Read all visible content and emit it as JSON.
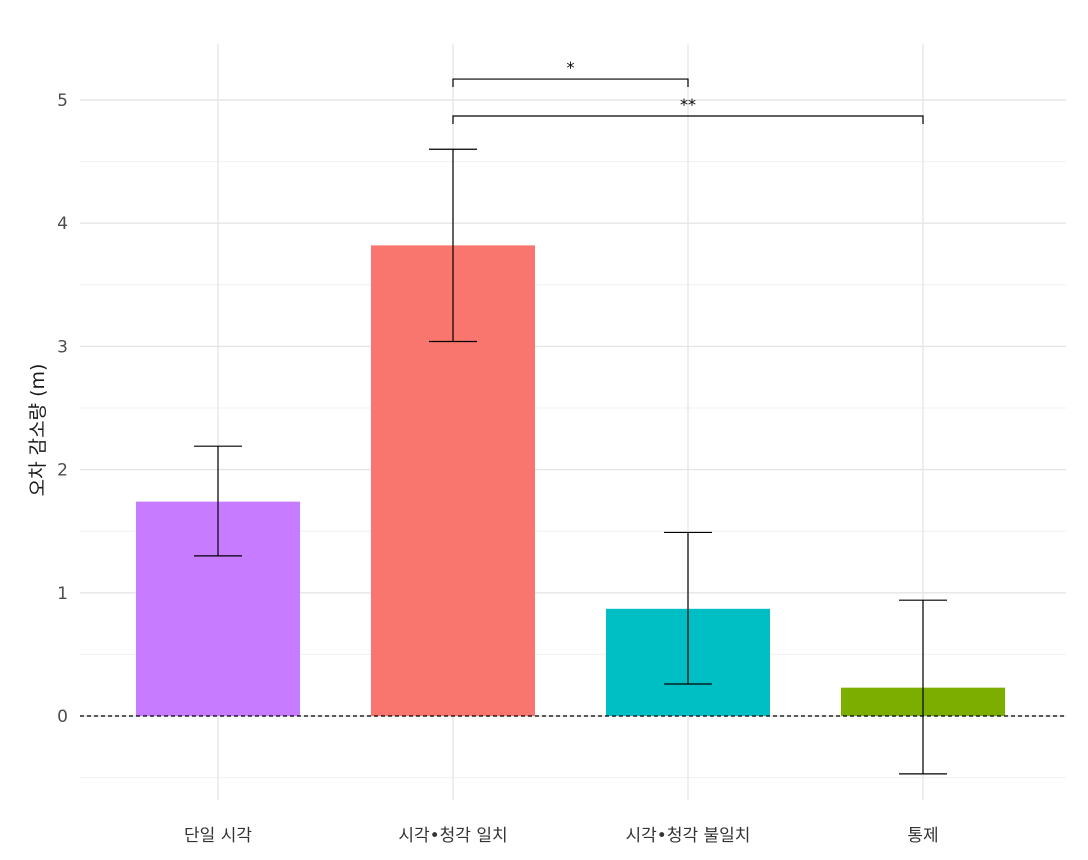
{
  "chart_data": {
    "type": "bar",
    "categories": [
      "단일 시각",
      "시각•청각 일치",
      "시각•청각 불일치",
      "통제"
    ],
    "values": [
      1.74,
      3.82,
      0.87,
      0.23
    ],
    "error_upper": [
      2.19,
      4.6,
      1.49,
      0.94
    ],
    "error_lower": [
      1.3,
      3.04,
      0.26,
      -0.47
    ],
    "colors": [
      "#C77CFF",
      "#F8766D",
      "#00BFC4",
      "#7CAE00"
    ],
    "xlabel": "",
    "ylabel": "오차 감소량 (m)",
    "ylim": [
      -0.55,
      5.45
    ],
    "yticks": [
      0,
      1,
      2,
      3,
      4,
      5
    ],
    "grid": true,
    "legend": "none",
    "reference_line": {
      "y": 0,
      "style": "dashed"
    },
    "significance": [
      {
        "from": 1,
        "to": 2,
        "label": "*",
        "y": 5.17
      },
      {
        "from": 1,
        "to": 3,
        "label": "**",
        "y": 4.87
      }
    ]
  }
}
